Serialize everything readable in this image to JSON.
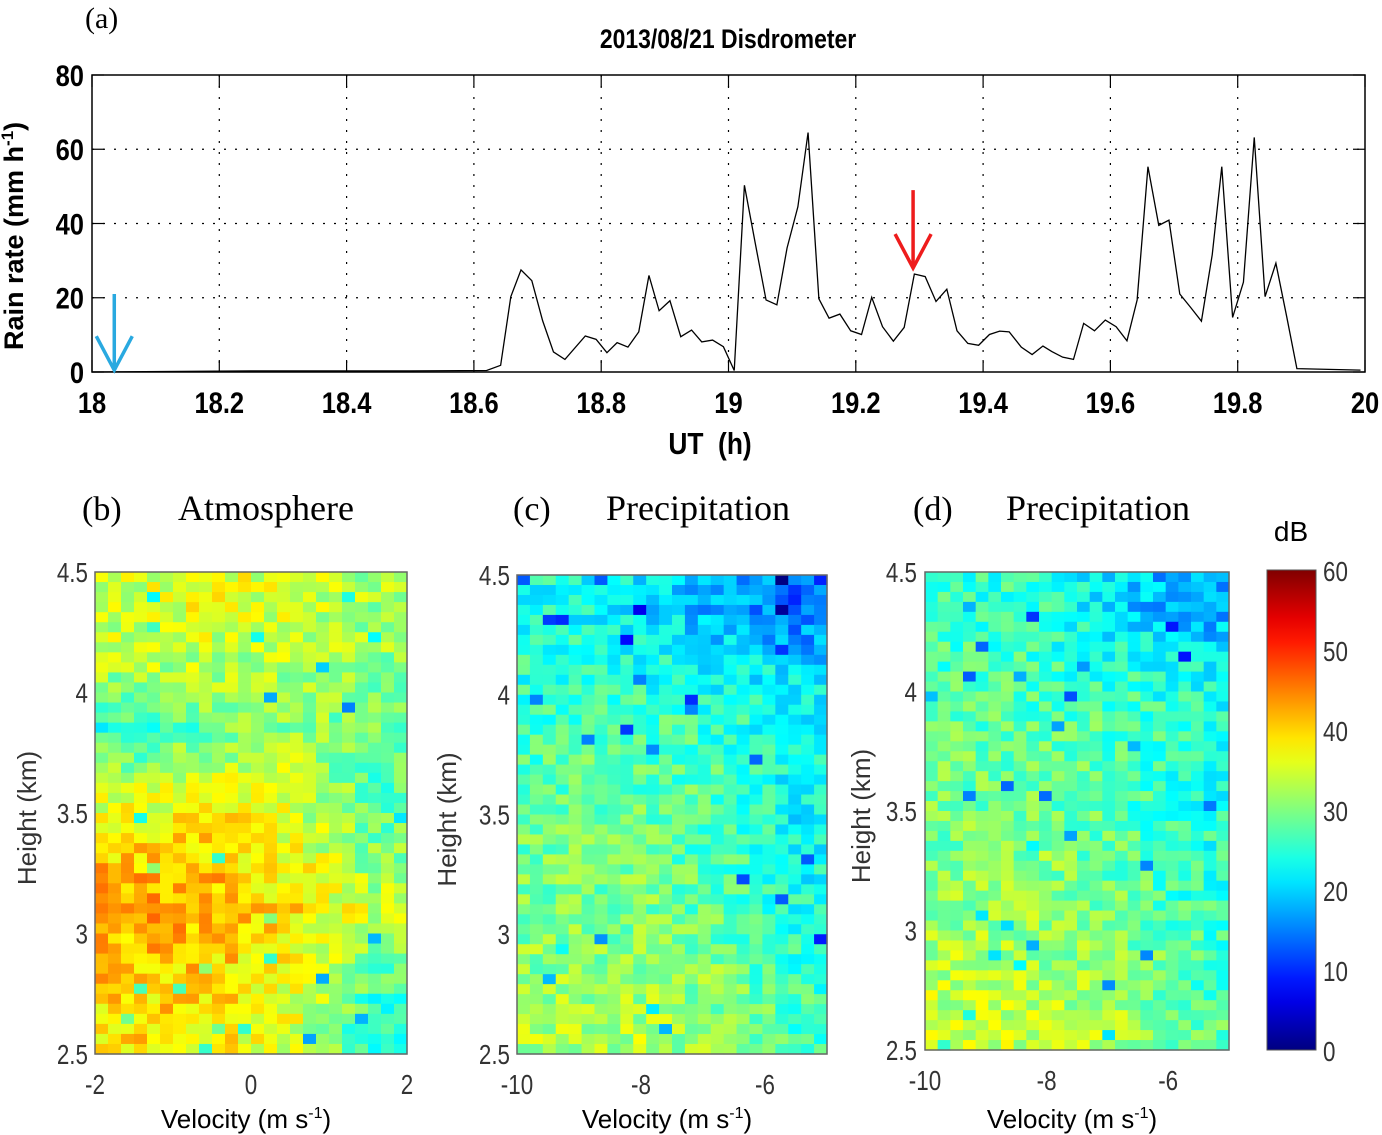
{
  "chart_data": [
    {
      "panel_label": "(a)",
      "type": "line",
      "title": "2013/08/21 Disdrometer",
      "xlabel": "UT  (h)",
      "ylabel": "Rain rate (mm h",
      "ylabel_sup": "-1",
      "ylabel_end": ")",
      "xlim": [
        18,
        20
      ],
      "ylim": [
        0,
        80
      ],
      "xticks": [
        "18",
        "18.2",
        "18.4",
        "18.6",
        "18.8",
        "19",
        "19.2",
        "19.4",
        "19.6",
        "19.8",
        "20"
      ],
      "yticks": [
        "0",
        "20",
        "40",
        "60",
        "80"
      ],
      "grid": true,
      "line_color": "#000000",
      "x": [
        18.0,
        18.25,
        18.5,
        18.62,
        18.642,
        18.658,
        18.674,
        18.691,
        18.708,
        18.725,
        18.743,
        18.775,
        18.792,
        18.809,
        18.825,
        18.842,
        18.859,
        18.875,
        18.891,
        18.908,
        18.925,
        18.942,
        18.958,
        18.975,
        18.992,
        19.009,
        19.025,
        19.042,
        19.059,
        19.076,
        19.092,
        19.109,
        19.125,
        19.142,
        19.158,
        19.175,
        19.192,
        19.209,
        19.225,
        19.242,
        19.259,
        19.276,
        19.292,
        19.309,
        19.326,
        19.343,
        19.359,
        19.376,
        19.393,
        19.41,
        19.426,
        19.441,
        19.46,
        19.477,
        19.494,
        19.508,
        19.525,
        19.542,
        19.558,
        19.575,
        19.592,
        19.609,
        19.626,
        19.642,
        19.659,
        19.676,
        19.692,
        19.709,
        19.726,
        19.743,
        19.76,
        19.775,
        19.792,
        19.809,
        19.826,
        19.843,
        19.86,
        19.877,
        19.893,
        19.993
      ],
      "y": [
        0,
        0.3,
        0.3,
        0.4,
        1.8,
        20.3,
        27.5,
        24.6,
        13.8,
        5.4,
        3.4,
        9.7,
        8.8,
        5.2,
        7.9,
        6.7,
        10.8,
        26.0,
        16.5,
        19.2,
        9.5,
        11.3,
        8.1,
        8.6,
        6.8,
        0.4,
        50.3,
        34.7,
        19.4,
        18.1,
        33.4,
        44.5,
        64.5,
        19.7,
        14.5,
        15.6,
        11.1,
        10.1,
        20.1,
        12.2,
        8.3,
        12.0,
        26.4,
        25.7,
        19.0,
        22.3,
        11.1,
        7.7,
        7.2,
        10.1,
        11.0,
        10.8,
        6.7,
        4.7,
        7.0,
        5.5,
        4.0,
        3.4,
        13.1,
        11.1,
        14.0,
        12.2,
        8.4,
        19.4,
        55.3,
        39.5,
        40.9,
        21.0,
        17.4,
        13.7,
        31.6,
        55.3,
        14.7,
        24.2,
        63.2,
        20.3,
        29.3,
        14.9,
        0.9,
        0.5
      ],
      "annotations": [
        {
          "type": "arrow",
          "color": "#29a9e0",
          "x": 18.035,
          "y_from": 21,
          "y_to": 0.5
        },
        {
          "type": "arrow",
          "color": "#ee1c1c",
          "x": 19.29,
          "y_from": 49,
          "y_to": 28
        }
      ]
    },
    {
      "panel_label": "(b)",
      "type": "heatmap",
      "title": "Atmosphere",
      "xlabel": "Velocity (m s",
      "xlabel_sup": "-1",
      "xlabel_end": ")",
      "ylabel": "Height (km)",
      "xlim": [
        -2,
        2
      ],
      "ylim": [
        2.5,
        4.5
      ],
      "xticks": [
        "-2",
        "0",
        "2"
      ],
      "yticks": [
        "2.5",
        "3",
        "3.5",
        "4",
        "4.5"
      ],
      "coarse_mean_dB_top_to_bottom": [
        [
          35,
          36,
          34,
          32
        ],
        [
          33,
          33,
          33,
          31
        ],
        [
          25,
          30,
          31,
          29
        ],
        [
          34,
          36,
          34,
          28
        ],
        [
          40,
          40,
          36,
          30
        ],
        [
          43,
          42,
          39,
          34
        ],
        [
          41,
          40,
          37,
          28
        ],
        [
          39,
          39,
          35,
          24
        ]
      ]
    },
    {
      "panel_label": "(c)",
      "type": "heatmap",
      "title": "Precipitation",
      "xlabel": "Velocity (m s",
      "xlabel_sup": "-1",
      "xlabel_end": ")",
      "ylabel": "Height (km)",
      "xlim": [
        -10,
        -5
      ],
      "ylim": [
        2.5,
        4.5
      ],
      "xticks": [
        "-10",
        "-8",
        "-6"
      ],
      "yticks": [
        "2.5",
        "3",
        "3.5",
        "4",
        "4.5"
      ],
      "coarse_mean_dB_top_to_bottom": [
        [
          24,
          22,
          18,
          14
        ],
        [
          25,
          24,
          23,
          21
        ],
        [
          27,
          27,
          26,
          23
        ],
        [
          28,
          28,
          27,
          23
        ],
        [
          29,
          29,
          27,
          23
        ],
        [
          30,
          30,
          28,
          24
        ],
        [
          31,
          31,
          30,
          26
        ],
        [
          33,
          33,
          31,
          27
        ]
      ]
    },
    {
      "panel_label": "(d)",
      "type": "heatmap",
      "title": "Precipitation",
      "xlabel": "Velocity (m s",
      "xlabel_sup": "-1",
      "xlabel_end": ")",
      "ylabel": "Height (km)",
      "xlim": [
        -10,
        -5
      ],
      "ylim": [
        2.5,
        4.5
      ],
      "xticks": [
        "-10",
        "-8",
        "-6"
      ],
      "yticks": [
        "2.5",
        "3",
        "3.5",
        "4",
        "4.5"
      ],
      "coarse_mean_dB_top_to_bottom": [
        [
          26,
          25,
          20,
          17
        ],
        [
          27,
          26,
          25,
          23
        ],
        [
          28,
          28,
          27,
          25
        ],
        [
          29,
          29,
          27,
          24
        ],
        [
          30,
          30,
          28,
          25
        ],
        [
          31,
          31,
          29,
          26
        ],
        [
          33,
          32,
          31,
          27
        ],
        [
          34,
          34,
          32,
          28
        ]
      ]
    }
  ],
  "colorbar": {
    "label": "dB",
    "range": [
      0,
      60
    ],
    "ticks": [
      "0",
      "10",
      "20",
      "30",
      "40",
      "50",
      "60"
    ],
    "colormap": "jet"
  }
}
